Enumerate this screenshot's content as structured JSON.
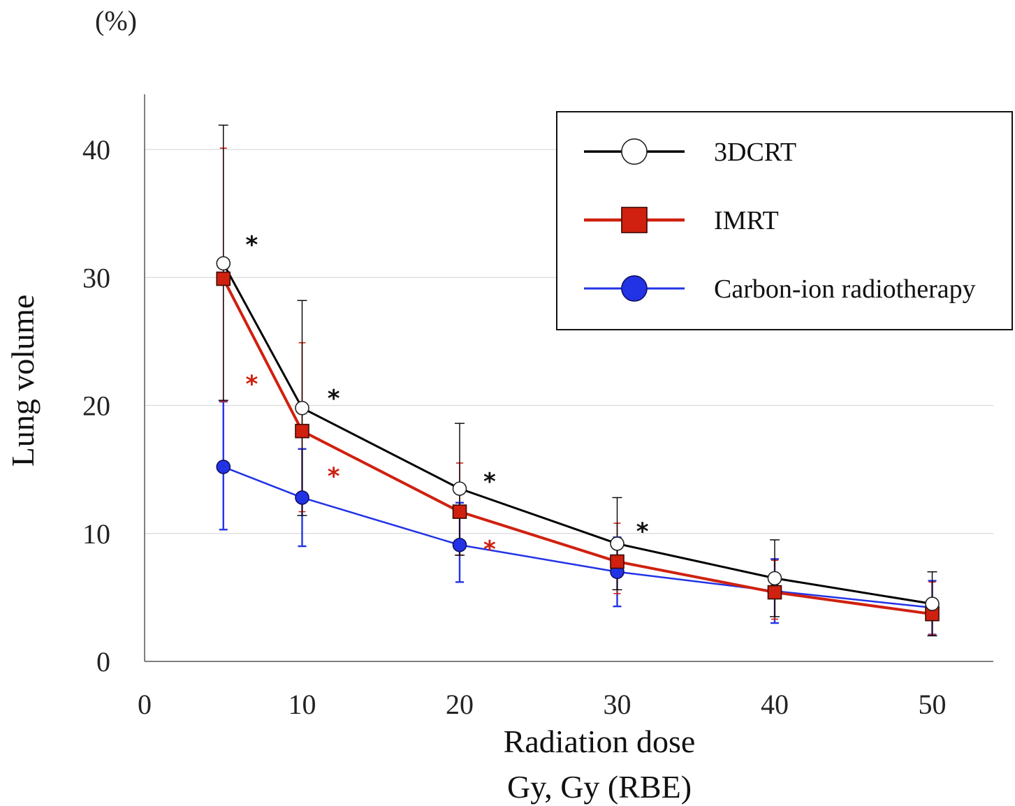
{
  "chart_data": {
    "type": "line",
    "ylabel": "Lung volume",
    "yunit": "(%)",
    "xlabel": "Radiation dose",
    "xlabel2": "Gy, Gy (RBE)",
    "xlim": [
      0,
      54
    ],
    "ylim": [
      0,
      44
    ],
    "xticks": [
      0,
      10,
      20,
      30,
      40,
      50
    ],
    "yticks": [
      0,
      10,
      20,
      30,
      40
    ],
    "grid": "horizontal",
    "legend_position": "top-right",
    "x": [
      5,
      10,
      20,
      30,
      40,
      50
    ],
    "series": [
      {
        "name": "3DCRT",
        "color": "#000000",
        "marker": "open-circle",
        "values": [
          31.1,
          19.8,
          13.5,
          9.2,
          6.5,
          4.5
        ],
        "err_upper": [
          41.9,
          28.2,
          18.6,
          12.8,
          9.5,
          7.0
        ],
        "err_lower": [
          20.4,
          11.4,
          8.3,
          5.6,
          3.5,
          2.0
        ]
      },
      {
        "name": "IMRT",
        "color": "#d0200f",
        "marker": "square",
        "values": [
          29.9,
          18.0,
          11.7,
          7.8,
          5.4,
          3.7
        ],
        "err_upper": [
          40.1,
          24.9,
          15.5,
          10.8,
          7.9,
          6.2
        ],
        "err_lower": [
          20.3,
          11.7,
          8.3,
          5.3,
          3.3,
          2.1
        ]
      },
      {
        "name": "Carbon-ion radiotherapy",
        "color": "#2233e6",
        "marker": "filled-circle",
        "values": [
          15.2,
          12.8,
          9.1,
          7.0,
          5.5,
          4.2
        ],
        "err_upper": [
          20.3,
          16.6,
          12.4,
          9.7,
          8.0,
          6.3
        ],
        "err_lower": [
          10.3,
          9.0,
          6.2,
          4.3,
          3.0,
          2.1
        ]
      }
    ],
    "annotations": [
      {
        "text": "*",
        "color": "#111111",
        "x": 6.8,
        "y": 32.8
      },
      {
        "text": "*",
        "color": "#d0200f",
        "x": 6.8,
        "y": 21.9
      },
      {
        "text": "*",
        "color": "#111111",
        "x": 12.0,
        "y": 20.8
      },
      {
        "text": "*",
        "color": "#d0200f",
        "x": 12.0,
        "y": 14.7
      },
      {
        "text": "*",
        "color": "#111111",
        "x": 21.9,
        "y": 14.3
      },
      {
        "text": "*",
        "color": "#d0200f",
        "x": 21.9,
        "y": 9.0
      },
      {
        "text": "*",
        "color": "#111111",
        "x": 31.6,
        "y": 10.4
      }
    ]
  }
}
